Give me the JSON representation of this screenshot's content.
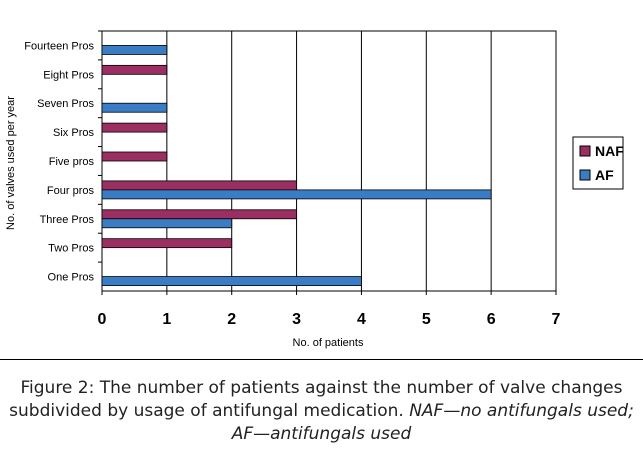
{
  "chart_data": {
    "type": "bar",
    "orientation": "horizontal",
    "categories": [
      "One Pros",
      "Two Pros",
      "Three Pros",
      "Four pros",
      "Five pros",
      "Six Pros",
      "Seven Pros",
      "Eight Pros",
      "Fourteen Pros"
    ],
    "series": [
      {
        "name": "NAF",
        "color": "#9b2f62",
        "values": [
          0,
          2,
          3,
          3,
          1,
          1,
          0,
          1,
          0
        ]
      },
      {
        "name": "AF",
        "color": "#3b7dc4",
        "values": [
          4,
          0,
          2,
          6,
          0,
          0,
          1,
          0,
          1
        ]
      }
    ],
    "xlabel": "No. of patients",
    "ylabel": "No. of valves used per year",
    "xlim": [
      0,
      7
    ],
    "xticks": [
      "0",
      "1",
      "2",
      "3",
      "4",
      "5",
      "6",
      "7"
    ],
    "grid": true,
    "legend_position": "right",
    "legend_order": [
      "NAF",
      "AF"
    ]
  },
  "caption": {
    "line1": "Figure 2: The number of patients against the number of valve changes",
    "line2_plain": "subdivided by usage of antifungal medication. ",
    "line2_italic": "NAF—no antifungals used;",
    "line3_italic": "AF—antifungals used"
  }
}
